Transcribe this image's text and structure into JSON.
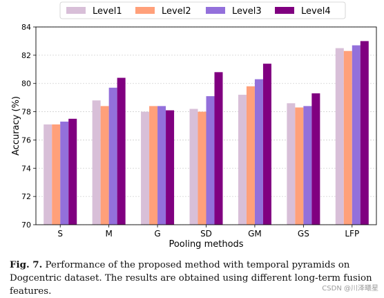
{
  "chart_data": {
    "type": "bar",
    "categories": [
      "S",
      "M",
      "G",
      "SD",
      "GM",
      "GS",
      "LFP"
    ],
    "series": [
      {
        "name": "Level1",
        "color": "#d8bfd8",
        "values": [
          77.1,
          78.8,
          78.0,
          78.2,
          79.2,
          78.6,
          82.5
        ]
      },
      {
        "name": "Level2",
        "color": "#ffa07a",
        "values": [
          77.1,
          78.4,
          78.4,
          78.0,
          79.8,
          78.3,
          82.3
        ]
      },
      {
        "name": "Level3",
        "color": "#9370db",
        "values": [
          77.3,
          79.7,
          78.4,
          79.1,
          80.3,
          78.4,
          82.7
        ]
      },
      {
        "name": "Level4",
        "color": "#800080",
        "values": [
          77.5,
          80.4,
          78.1,
          80.8,
          81.4,
          79.3,
          83.0
        ]
      }
    ],
    "xlabel": "Pooling methods",
    "ylabel": "Accuracy (%)",
    "ylim": [
      70,
      84
    ],
    "yticks": [
      70,
      72,
      74,
      76,
      78,
      80,
      82,
      84
    ],
    "grid": true,
    "legend_position": "top"
  },
  "caption": {
    "label": "Fig. 7.",
    "text": "Performance of the proposed method with temporal pyramids on Dogcentric dataset. The results are obtained using different long-term fusion features."
  },
  "watermark": "CSDN @川泽曦星"
}
